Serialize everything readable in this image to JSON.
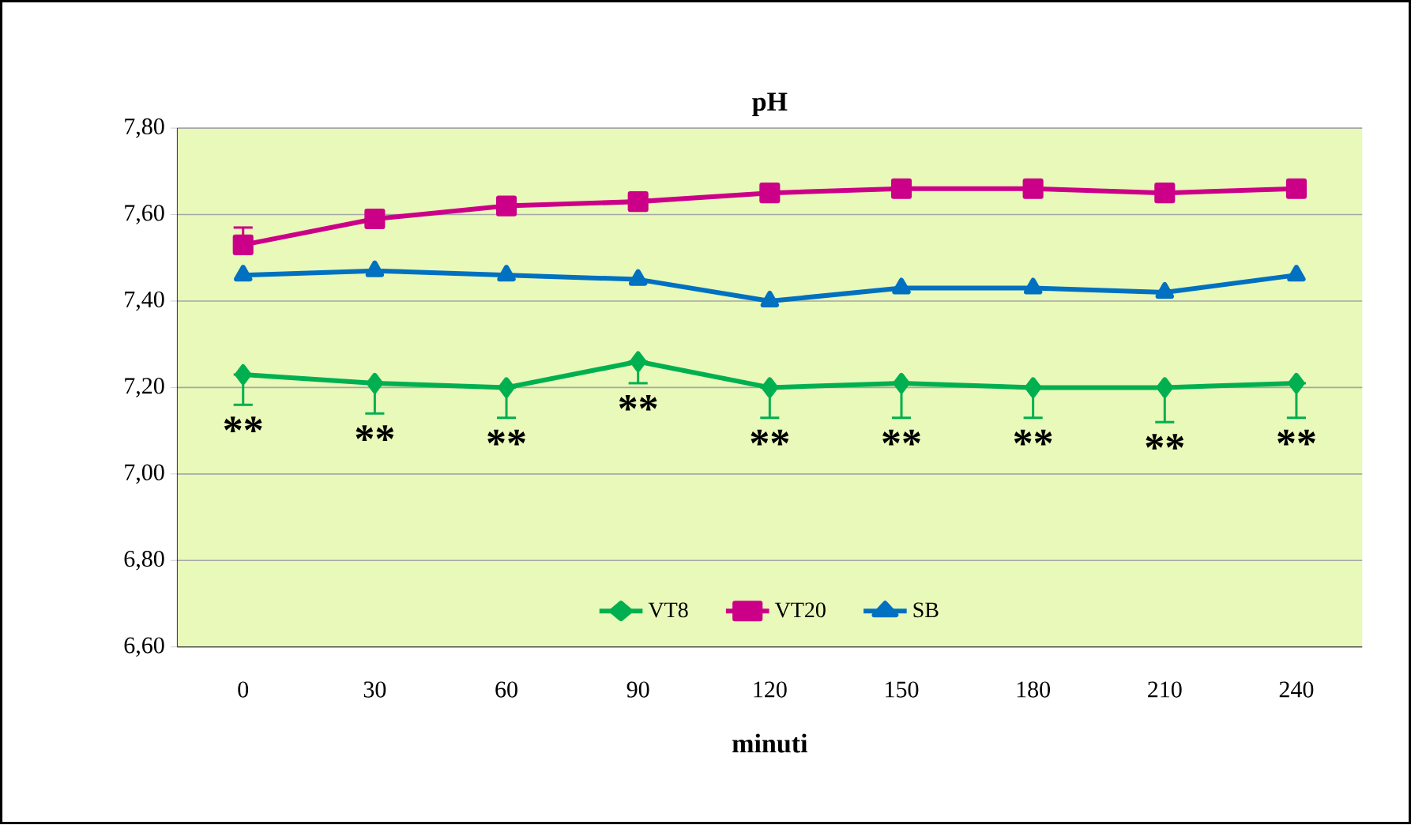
{
  "chart_data": {
    "type": "line",
    "title": "pH",
    "xlabel": "minuti",
    "categories": [
      "0",
      "30",
      "60",
      "90",
      "120",
      "150",
      "180",
      "210",
      "240"
    ],
    "ylim": [
      6.6,
      7.8
    ],
    "yticks": [
      {
        "value": 6.6,
        "label": "6,60"
      },
      {
        "value": 6.8,
        "label": "6,80"
      },
      {
        "value": 7.0,
        "label": "7,00"
      },
      {
        "value": 7.2,
        "label": "7,20"
      },
      {
        "value": 7.4,
        "label": "7,40"
      },
      {
        "value": 7.6,
        "label": "7,60"
      },
      {
        "value": 7.8,
        "label": "7,80"
      }
    ],
    "grid": "y",
    "legend": "bottom",
    "series": [
      {
        "name": "VT8",
        "color": "#00b050",
        "marker": "diamond",
        "values": [
          7.23,
          7.21,
          7.2,
          7.26,
          7.2,
          7.21,
          7.2,
          7.2,
          7.21
        ],
        "errors": [
          [
            7.16,
            7.23
          ],
          [
            7.14,
            7.21
          ],
          [
            7.13,
            7.2
          ],
          [
            7.21,
            7.26
          ],
          [
            7.13,
            7.2
          ],
          [
            7.13,
            7.21
          ],
          [
            7.13,
            7.2
          ],
          [
            7.12,
            7.2
          ],
          [
            7.13,
            7.21
          ]
        ]
      },
      {
        "name": "VT20",
        "color": "#cc0088",
        "marker": "square",
        "values": [
          7.53,
          7.59,
          7.62,
          7.63,
          7.65,
          7.66,
          7.66,
          7.65,
          7.66
        ],
        "errors": [
          [
            7.53,
            7.57
          ],
          null,
          null,
          null,
          null,
          null,
          null,
          null,
          null
        ]
      },
      {
        "name": "SB",
        "color": "#0070c0",
        "marker": "triangle",
        "values": [
          7.46,
          7.47,
          7.46,
          7.45,
          7.4,
          7.43,
          7.43,
          7.42,
          7.46
        ]
      }
    ],
    "annotations": [
      "**",
      "**",
      "**",
      "**",
      "**",
      "**",
      "**",
      "**",
      "**"
    ]
  }
}
